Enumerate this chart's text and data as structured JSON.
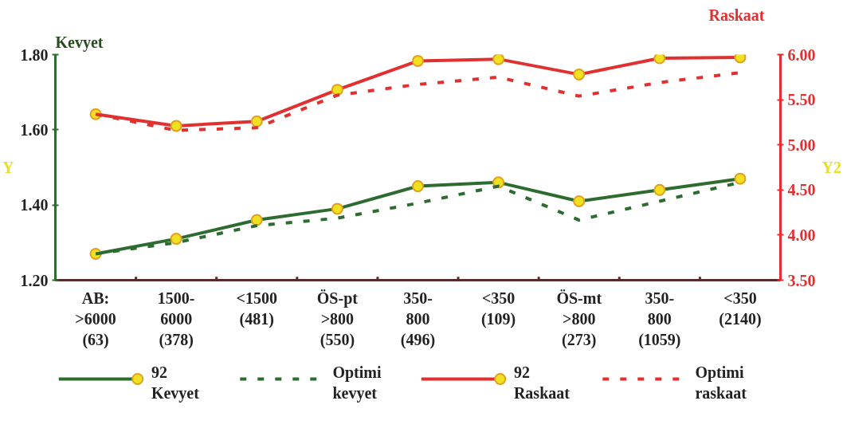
{
  "chart_data": {
    "type": "line",
    "categories": [
      "AB:\n>6000\n(63)",
      "1500-\n6000\n(378)",
      "<1500\n(481)",
      "ÖS-pt\n>800\n(550)",
      "350-\n800\n(496)",
      "<350\n(109)",
      "ÖS-mt\n>800\n(273)",
      "350-\n800\n(1059)",
      "<350\n(2140)"
    ],
    "ylabel": "Y",
    "y2label": "Y2",
    "annotations": [
      "Kevyet",
      "Raskaat"
    ],
    "ylim": [
      1.2,
      1.8
    ],
    "yticks": [
      {
        "value": 1.2,
        "label": "1.20"
      },
      {
        "value": 1.4,
        "label": "1.40"
      },
      {
        "value": 1.6,
        "label": "1.60"
      },
      {
        "value": 1.8,
        "label": "1.80"
      }
    ],
    "y2lim": [
      3.5,
      6.0
    ],
    "y2ticks": [
      {
        "value": 3.5,
        "label": "3.50"
      },
      {
        "value": 4.0,
        "label": "4.00"
      },
      {
        "value": 4.5,
        "label": "4.50"
      },
      {
        "value": 5.0,
        "label": "5.00"
      },
      {
        "value": 5.5,
        "label": "5.50"
      },
      {
        "value": 6.0,
        "label": "6.00"
      }
    ],
    "grid": false,
    "legend": "bottom",
    "series": [
      {
        "name": "92\nKevyet",
        "color": "#2e6b30",
        "marker": "circle",
        "line_style": "solid",
        "values": [
          1.27,
          1.31,
          1.36,
          1.39,
          1.45,
          1.46,
          1.41,
          1.44,
          1.47
        ]
      },
      {
        "name": "Optimi\nkevyet",
        "color": "#2e6b30",
        "marker": "none",
        "line_style": "dashed",
        "values": [
          1.27,
          1.3,
          1.345,
          1.365,
          1.405,
          1.45,
          1.36,
          1.41,
          1.46
        ]
      },
      {
        "name": "92\nRaskaat",
        "color": "#e03030",
        "marker": "circle",
        "line_style": "solid",
        "axis": "y2",
        "values": [
          5.34,
          5.21,
          5.26,
          5.61,
          5.93,
          5.95,
          5.78,
          5.96,
          5.97
        ]
      },
      {
        "name": "Optimi\nraskaat",
        "color": "#e03030",
        "marker": "none",
        "line_style": "dashed",
        "axis": "y2",
        "values": [
          5.34,
          5.16,
          5.19,
          5.55,
          5.67,
          5.75,
          5.54,
          5.69,
          5.8
        ]
      }
    ]
  }
}
